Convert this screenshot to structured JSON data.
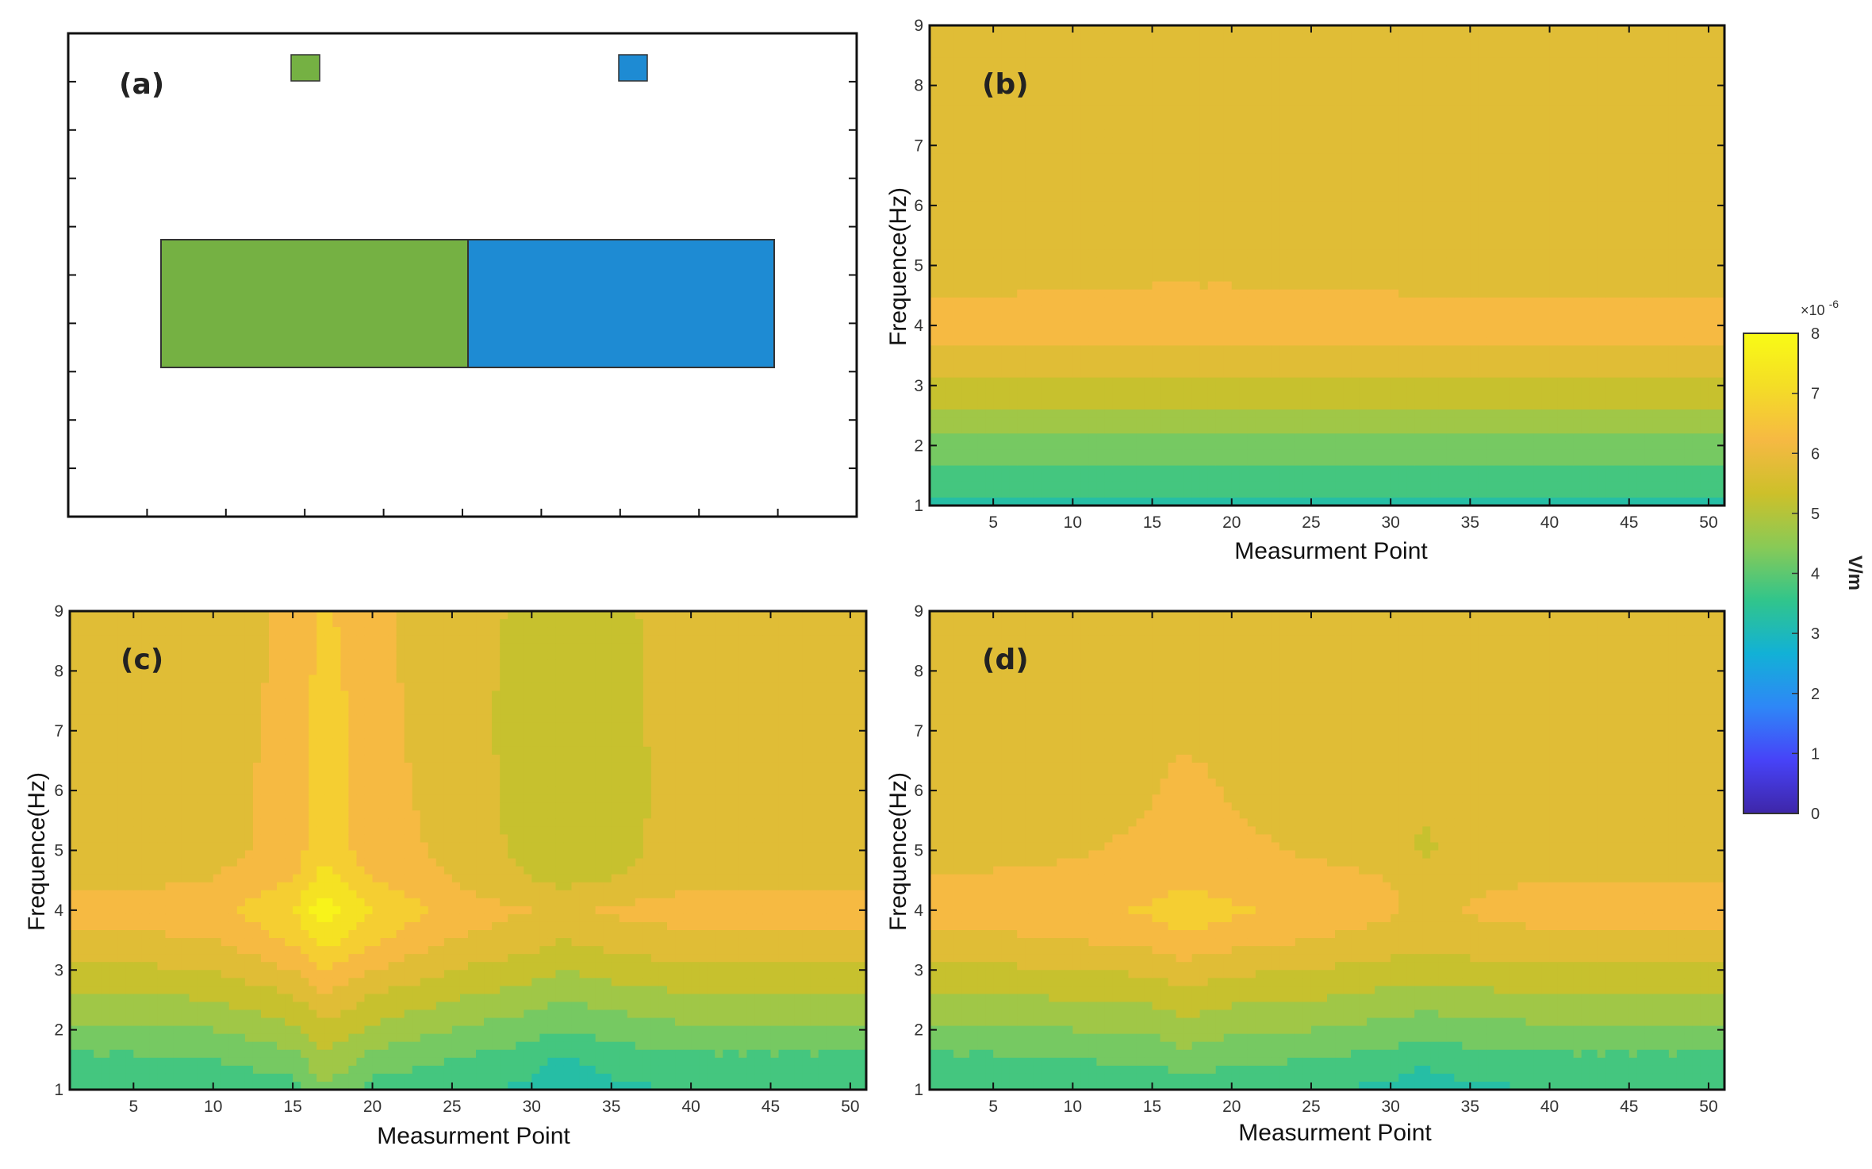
{
  "figure": {
    "panels": [
      {
        "id": "a",
        "label": "(a)"
      },
      {
        "id": "b",
        "label": "(b)"
      },
      {
        "id": "c",
        "label": "(c)"
      },
      {
        "id": "d",
        "label": "(d)"
      }
    ]
  },
  "colors": {
    "block_left": "#75b143",
    "block_right": "#1e8bd3",
    "colormap": [
      "#3e26a8",
      "#4743f8",
      "#2e87f7",
      "#12b1d6",
      "#31c58b",
      "#89ca56",
      "#cdc02a",
      "#f6b943",
      "#f4dd26",
      "#f9fb15"
    ]
  },
  "chart_data": [
    {
      "panel": "a",
      "type": "diagram",
      "blocks": [
        {
          "name": "",
          "color": "#75b143"
        },
        {
          "name": "",
          "color": "#1e8bd3"
        }
      ],
      "legend_markers": [
        {
          "color": "#75b143"
        },
        {
          "color": "#1e8bd3"
        }
      ]
    },
    {
      "panel": "b",
      "type": "heatmap",
      "title": "",
      "xlabel": "Measurment Point",
      "ylabel": "Frequence(Hz)",
      "xlim": [
        1,
        51
      ],
      "ylim": [
        1,
        9
      ],
      "xticks": [
        5,
        10,
        15,
        20,
        25,
        30,
        35,
        40,
        45,
        50
      ],
      "yticks": [
        1,
        2,
        3,
        4,
        5,
        6,
        7,
        8,
        9
      ],
      "x": [
        1,
        5,
        10,
        15,
        17,
        20,
        25,
        30,
        32,
        35,
        40,
        45,
        51
      ],
      "y": [
        1,
        1.5,
        2,
        2.5,
        3,
        3.5,
        4,
        4.5,
        5,
        6,
        7,
        8,
        9
      ],
      "z": [
        [
          3.4,
          3.4,
          3.4,
          3.4,
          3.4,
          3.4,
          3.4,
          3.4,
          3.4,
          3.4,
          3.4,
          3.4,
          3.4
        ],
        [
          3.8,
          3.8,
          3.8,
          3.8,
          3.8,
          3.8,
          3.8,
          3.8,
          3.8,
          3.8,
          3.8,
          3.8,
          3.8
        ],
        [
          4.3,
          4.3,
          4.3,
          4.3,
          4.3,
          4.3,
          4.3,
          4.3,
          4.3,
          4.3,
          4.3,
          4.3,
          4.3
        ],
        [
          4.9,
          4.9,
          4.9,
          4.9,
          4.9,
          4.9,
          4.9,
          4.9,
          4.9,
          4.9,
          4.9,
          4.9,
          4.9
        ],
        [
          5.4,
          5.4,
          5.4,
          5.4,
          5.4,
          5.4,
          5.4,
          5.4,
          5.4,
          5.4,
          5.4,
          5.4,
          5.4
        ],
        [
          5.9,
          5.9,
          5.9,
          5.9,
          5.9,
          5.9,
          5.9,
          5.9,
          5.9,
          5.9,
          5.9,
          5.9,
          5.9
        ],
        [
          6.2,
          6.2,
          6.25,
          6.3,
          6.3,
          6.3,
          6.25,
          6.22,
          6.2,
          6.2,
          6.2,
          6.2,
          6.2
        ],
        [
          5.98,
          6.0,
          6.05,
          6.1,
          6.1,
          6.1,
          6.05,
          6.02,
          6.0,
          5.98,
          5.97,
          5.96,
          5.95
        ],
        [
          5.8,
          5.8,
          5.8,
          5.8,
          5.8,
          5.8,
          5.8,
          5.8,
          5.8,
          5.8,
          5.8,
          5.8,
          5.8
        ],
        [
          5.7,
          5.7,
          5.7,
          5.7,
          5.7,
          5.7,
          5.7,
          5.7,
          5.7,
          5.7,
          5.7,
          5.7,
          5.7
        ],
        [
          5.7,
          5.7,
          5.7,
          5.7,
          5.7,
          5.7,
          5.7,
          5.7,
          5.7,
          5.7,
          5.7,
          5.7,
          5.7
        ],
        [
          5.7,
          5.7,
          5.7,
          5.7,
          5.7,
          5.7,
          5.7,
          5.7,
          5.7,
          5.7,
          5.7,
          5.7,
          5.7
        ],
        [
          5.7,
          5.7,
          5.7,
          5.7,
          5.7,
          5.7,
          5.7,
          5.7,
          5.7,
          5.7,
          5.7,
          5.7,
          5.7
        ]
      ],
      "levels": [
        0,
        0.5,
        1,
        1.5,
        2,
        2.5,
        3,
        3.5,
        4,
        4.5,
        5,
        5.5,
        6,
        6.5,
        7,
        7.5,
        8
      ],
      "clim": [
        0,
        8
      ],
      "colormap": "parula"
    },
    {
      "panel": "c",
      "type": "heatmap",
      "title": "",
      "xlabel": "Measurment Point",
      "ylabel": "Frequence(Hz)",
      "xlim": [
        1,
        51
      ],
      "ylim": [
        1,
        9
      ],
      "xticks": [
        5,
        10,
        15,
        20,
        25,
        30,
        35,
        40,
        45,
        50
      ],
      "yticks": [
        1,
        2,
        3,
        4,
        5,
        6,
        7,
        8,
        9
      ],
      "x": [
        1,
        5,
        10,
        15,
        17,
        20,
        25,
        30,
        32,
        35,
        40,
        45,
        51
      ],
      "y": [
        1,
        1.5,
        2,
        2.5,
        3,
        3.5,
        4,
        4.5,
        5,
        6,
        7,
        8,
        9
      ],
      "z": [
        [
          3.5,
          3.5,
          3.6,
          3.8,
          4.5,
          3.8,
          3.6,
          3.4,
          3.0,
          3.4,
          3.5,
          3.5,
          3.5
        ],
        [
          3.9,
          3.9,
          4.0,
          4.3,
          4.9,
          4.3,
          4.0,
          3.7,
          3.4,
          3.7,
          3.9,
          3.9,
          3.9
        ],
        [
          4.4,
          4.4,
          4.5,
          4.9,
          5.4,
          4.9,
          4.5,
          4.2,
          4.0,
          4.2,
          4.4,
          4.4,
          4.4
        ],
        [
          4.9,
          4.9,
          5.0,
          5.4,
          5.9,
          5.4,
          5.0,
          4.7,
          4.5,
          4.7,
          4.9,
          4.9,
          4.9
        ],
        [
          5.4,
          5.4,
          5.5,
          6.0,
          6.5,
          6.0,
          5.5,
          5.2,
          5.0,
          5.2,
          5.4,
          5.4,
          5.4
        ],
        [
          5.9,
          5.9,
          6.0,
          6.6,
          7.2,
          6.6,
          6.0,
          5.7,
          5.5,
          5.7,
          5.9,
          5.9,
          5.9
        ],
        [
          6.2,
          6.2,
          6.3,
          7.0,
          7.8,
          7.0,
          6.3,
          6.0,
          5.8,
          6.1,
          6.2,
          6.2,
          6.2
        ],
        [
          5.9,
          5.9,
          6.0,
          6.5,
          7.2,
          6.5,
          6.0,
          5.5,
          5.4,
          5.5,
          5.9,
          5.9,
          5.9
        ],
        [
          5.8,
          5.8,
          5.8,
          6.2,
          6.9,
          6.2,
          5.9,
          5.3,
          5.0,
          5.3,
          5.8,
          5.8,
          5.8
        ],
        [
          5.7,
          5.7,
          5.8,
          6.2,
          6.9,
          6.2,
          5.8,
          5.3,
          5.2,
          5.3,
          5.7,
          5.7,
          5.7
        ],
        [
          5.7,
          5.7,
          5.7,
          6.2,
          6.8,
          6.2,
          5.7,
          5.3,
          5.25,
          5.35,
          5.7,
          5.7,
          5.7
        ],
        [
          5.7,
          5.7,
          5.7,
          6.15,
          6.7,
          6.15,
          5.7,
          5.35,
          5.3,
          5.35,
          5.7,
          5.7,
          5.7
        ],
        [
          5.7,
          5.7,
          5.7,
          6.1,
          6.6,
          6.1,
          5.7,
          5.4,
          5.35,
          5.4,
          5.7,
          5.7,
          5.7
        ]
      ],
      "levels": [
        0,
        0.5,
        1,
        1.5,
        2,
        2.5,
        3,
        3.5,
        4,
        4.5,
        5,
        5.5,
        6,
        6.5,
        7,
        7.5,
        8
      ],
      "clim": [
        0,
        8
      ],
      "colormap": "parula"
    },
    {
      "panel": "d",
      "type": "heatmap",
      "title": "",
      "xlabel": "Measurment Point",
      "ylabel": "Frequence(Hz)",
      "xlim": [
        1,
        51
      ],
      "ylim": [
        1,
        9
      ],
      "xticks": [
        5,
        10,
        15,
        20,
        25,
        30,
        35,
        40,
        45,
        50
      ],
      "yticks": [
        1,
        2,
        3,
        4,
        5,
        6,
        7,
        8,
        9
      ],
      "x": [
        1,
        5,
        10,
        15,
        17,
        20,
        25,
        30,
        32,
        35,
        40,
        45,
        51
      ],
      "y": [
        1,
        1.5,
        2,
        2.5,
        3,
        3.5,
        4,
        4.5,
        5,
        6,
        7,
        8,
        9
      ],
      "z": [
        [
          3.5,
          3.5,
          3.5,
          3.6,
          3.7,
          3.6,
          3.5,
          3.4,
          3.2,
          3.4,
          3.5,
          3.5,
          3.5
        ],
        [
          3.9,
          3.9,
          4.0,
          4.1,
          4.3,
          4.1,
          4.0,
          3.8,
          3.6,
          3.8,
          3.9,
          3.9,
          3.9
        ],
        [
          4.4,
          4.4,
          4.5,
          4.6,
          4.8,
          4.6,
          4.5,
          4.3,
          4.2,
          4.3,
          4.4,
          4.4,
          4.4
        ],
        [
          4.9,
          4.9,
          5.0,
          5.1,
          5.3,
          5.1,
          5.0,
          4.8,
          4.7,
          4.8,
          4.9,
          4.9,
          4.9
        ],
        [
          5.4,
          5.4,
          5.5,
          5.6,
          5.8,
          5.6,
          5.5,
          5.3,
          5.2,
          5.3,
          5.4,
          5.4,
          5.4
        ],
        [
          5.9,
          5.9,
          6.0,
          6.2,
          6.4,
          6.2,
          6.0,
          5.8,
          5.7,
          5.8,
          5.9,
          5.9,
          5.9
        ],
        [
          6.2,
          6.25,
          6.3,
          6.6,
          6.9,
          6.6,
          6.3,
          6.1,
          5.8,
          6.05,
          6.2,
          6.2,
          6.2
        ],
        [
          6.02,
          6.05,
          6.1,
          6.2,
          6.4,
          6.2,
          6.15,
          6.0,
          5.8,
          5.9,
          6.0,
          6.0,
          6.0
        ],
        [
          5.9,
          5.9,
          5.95,
          6.1,
          6.3,
          6.1,
          5.95,
          5.8,
          5.4,
          5.75,
          5.8,
          5.8,
          5.8
        ],
        [
          5.7,
          5.7,
          5.8,
          5.95,
          6.2,
          5.95,
          5.8,
          5.7,
          5.6,
          5.7,
          5.7,
          5.7,
          5.7
        ],
        [
          5.7,
          5.7,
          5.7,
          5.8,
          5.9,
          5.8,
          5.7,
          5.7,
          5.7,
          5.7,
          5.7,
          5.7,
          5.7
        ],
        [
          5.7,
          5.7,
          5.7,
          5.7,
          5.7,
          5.7,
          5.7,
          5.7,
          5.7,
          5.7,
          5.7,
          5.7,
          5.7
        ],
        [
          5.7,
          5.7,
          5.7,
          5.7,
          5.7,
          5.7,
          5.7,
          5.7,
          5.7,
          5.7,
          5.7,
          5.7,
          5.7
        ]
      ],
      "levels": [
        0,
        0.5,
        1,
        1.5,
        2,
        2.5,
        3,
        3.5,
        4,
        4.5,
        5,
        5.5,
        6,
        6.5,
        7,
        7.5,
        8
      ],
      "clim": [
        0,
        8
      ],
      "colormap": "parula"
    }
  ],
  "colorbar": {
    "ticks": [
      0,
      1,
      2,
      3,
      4,
      5,
      6,
      7,
      8
    ],
    "label": "V/m",
    "exponent_base": "×10",
    "exponent_power": "-6",
    "range": [
      0,
      8
    ]
  }
}
